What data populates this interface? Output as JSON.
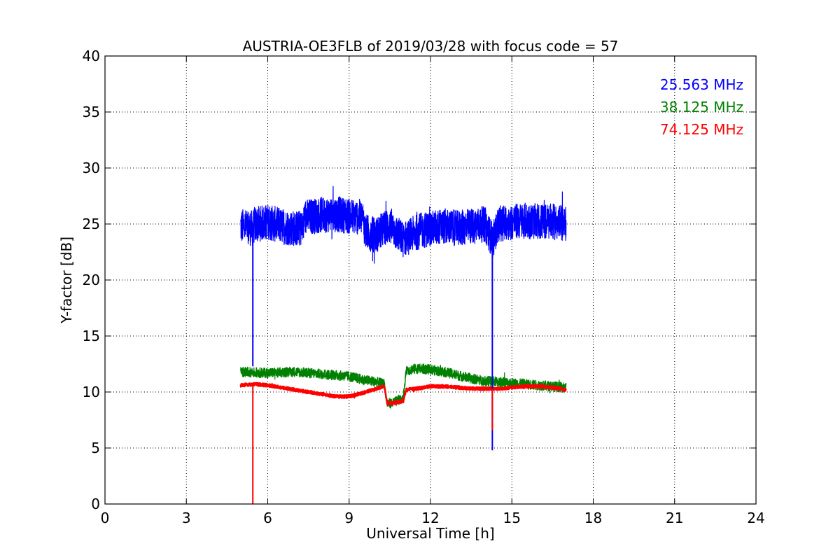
{
  "chart_data": {
    "type": "line",
    "title": "AUSTRIA-OE3FLB of 2019/03/28 with focus code = 57",
    "xlabel": "Universal Time [h]",
    "ylabel": "Y-factor [dB]",
    "xlim": [
      0,
      24
    ],
    "ylim": [
      0,
      40
    ],
    "xticks": [
      0,
      3,
      6,
      9,
      12,
      15,
      18,
      21,
      24
    ],
    "yticks": [
      0,
      5,
      10,
      15,
      20,
      25,
      30,
      35,
      40
    ],
    "grid": true,
    "legend_position": "top-right",
    "series": [
      {
        "name": "25.563 MHz",
        "color": "#0000ff",
        "noise_amplitude": 1.6,
        "x": [
          5.0,
          5.3,
          5.45,
          5.5,
          6.0,
          6.5,
          7.0,
          7.3,
          7.35,
          8.0,
          8.5,
          9.0,
          9.5,
          9.6,
          10.0,
          10.3,
          10.5,
          11.0,
          11.5,
          12.0,
          12.5,
          13.0,
          13.5,
          14.0,
          14.3,
          14.5,
          15.0,
          15.5,
          16.0,
          16.5,
          17.0
        ],
        "y": [
          24.8,
          24.7,
          24.6,
          24.9,
          25.2,
          24.8,
          24.6,
          24.6,
          25.6,
          25.8,
          25.9,
          25.7,
          25.6,
          24.3,
          24.0,
          24.6,
          24.8,
          23.6,
          24.3,
          24.6,
          24.8,
          24.6,
          24.8,
          25.0,
          23.5,
          25.0,
          25.2,
          25.3,
          25.2,
          25.2,
          25.0
        ]
      },
      {
        "name": "38.125 MHz",
        "color": "#008000",
        "noise_amplitude": 0.45,
        "x": [
          5.0,
          6.0,
          7.0,
          8.0,
          9.0,
          9.5,
          10.0,
          10.3,
          10.4,
          10.6,
          11.0,
          11.1,
          11.5,
          12.0,
          12.5,
          13.0,
          13.5,
          14.0,
          14.5,
          15.0,
          15.5,
          16.0,
          16.5,
          17.0
        ],
        "y": [
          11.8,
          11.7,
          11.8,
          11.6,
          11.4,
          11.1,
          10.9,
          10.7,
          9.0,
          9.0,
          9.5,
          11.9,
          12.1,
          12.0,
          11.8,
          11.5,
          11.2,
          11.0,
          10.9,
          10.8,
          10.7,
          10.6,
          10.5,
          10.4
        ]
      },
      {
        "name": "74.125 MHz",
        "color": "#ff0000",
        "noise_amplitude": 0.15,
        "x": [
          5.0,
          5.5,
          6.0,
          6.5,
          7.0,
          7.5,
          8.0,
          8.5,
          9.0,
          9.5,
          10.0,
          10.3,
          10.4,
          10.6,
          11.0,
          11.1,
          11.5,
          12.0,
          12.5,
          13.0,
          13.5,
          14.0,
          14.5,
          15.0,
          15.5,
          16.0,
          16.5,
          17.0
        ],
        "y": [
          10.6,
          10.7,
          10.6,
          10.4,
          10.2,
          10.0,
          9.8,
          9.6,
          9.6,
          9.9,
          10.3,
          10.5,
          9.0,
          9.0,
          9.2,
          10.2,
          10.3,
          10.5,
          10.5,
          10.4,
          10.3,
          10.3,
          10.3,
          10.4,
          10.5,
          10.5,
          10.4,
          10.2
        ]
      }
    ],
    "spikes": [
      {
        "series": 0,
        "x": 5.45,
        "ymin": 12.3
      },
      {
        "series": 0,
        "x": 14.28,
        "ymin": 4.8
      },
      {
        "series": 2,
        "x": 5.45,
        "ymin": 0
      },
      {
        "series": 2,
        "x": 14.28,
        "ymin": 6.6
      }
    ]
  }
}
